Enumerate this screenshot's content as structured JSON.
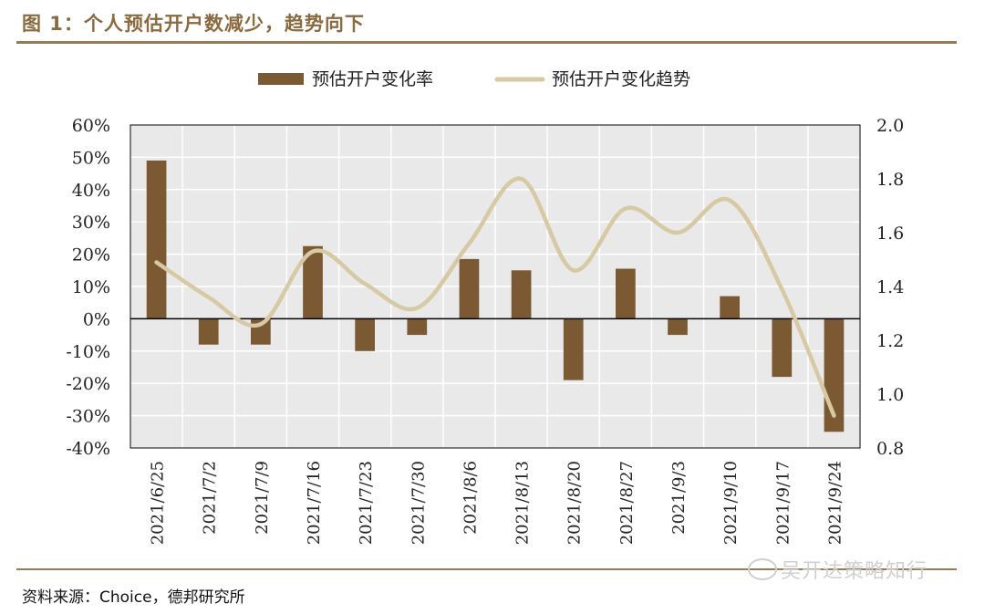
{
  "header": {
    "title": "图 1：个人预估开户数减少，趋势向下"
  },
  "footer": {
    "source": "资料来源：Choice，德邦研究所"
  },
  "watermark": {
    "text": "吴开达策略知行",
    "icon": "wechat-icon"
  },
  "colors": {
    "bar": "#7b5a33",
    "line": "#d6c9a3",
    "accent": "#8a6a3e",
    "plot_bg": "#e9e9e9",
    "grid": "#ffffff"
  },
  "chart_data": {
    "type": "bar",
    "categories": [
      "2021/6/25",
      "2021/7/2",
      "2021/7/9",
      "2021/7/16",
      "2021/7/23",
      "2021/7/30",
      "2021/8/6",
      "2021/8/13",
      "2021/8/20",
      "2021/8/27",
      "2021/9/3",
      "2021/9/10",
      "2021/9/17",
      "2021/9/24"
    ],
    "series": [
      {
        "name": "预估开户变化率",
        "type": "bar",
        "axis": "left",
        "values": [
          49,
          -8,
          -8,
          22.5,
          -10,
          -5,
          18.5,
          15,
          -19,
          15.5,
          -5,
          7,
          -18,
          -35
        ]
      },
      {
        "name": "预估开户变化趋势",
        "type": "line",
        "axis": "right",
        "values": [
          1.49,
          1.36,
          1.26,
          1.53,
          1.41,
          1.32,
          1.56,
          1.8,
          1.46,
          1.69,
          1.6,
          1.72,
          1.39,
          0.92
        ]
      }
    ],
    "y_left": {
      "min": -40,
      "max": 60,
      "step": 10,
      "format": "percent",
      "tick_labels": [
        "60%",
        "50%",
        "40%",
        "30%",
        "20%",
        "10%",
        "0%",
        "-10%",
        "-20%",
        "-30%",
        "-40%"
      ]
    },
    "y_right": {
      "min": 0.8,
      "max": 2.0,
      "step": 0.2,
      "tick_labels": [
        "2.0",
        "1.8",
        "1.6",
        "1.4",
        "1.2",
        "1.0",
        "0.8"
      ]
    },
    "grid": true,
    "legend": "top-center"
  }
}
